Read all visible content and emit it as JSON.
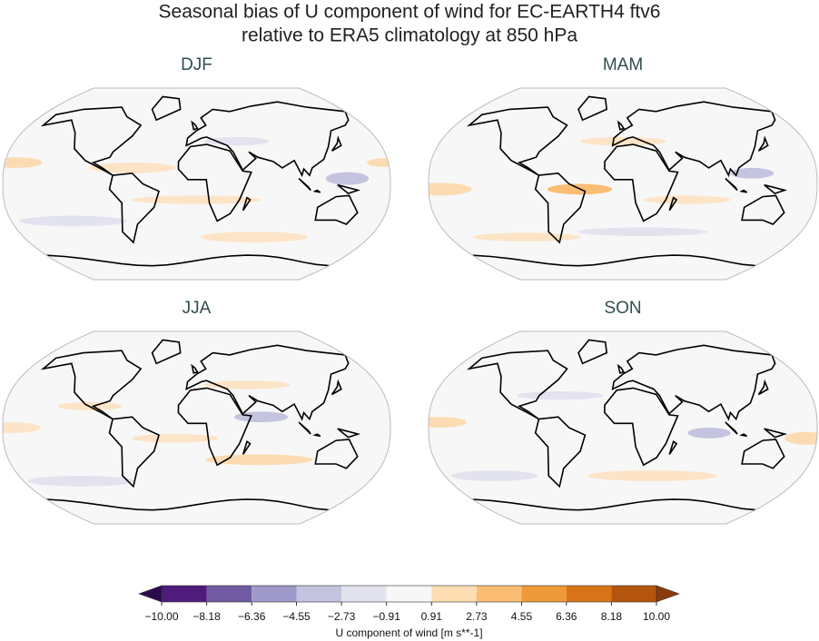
{
  "title_lines": [
    "Seasonal bias of U component of wind for EC-EARTH4 ftv6",
    "relative to ERA5 climatology at 850 hPa"
  ],
  "panels": [
    {
      "label": "DJF"
    },
    {
      "label": "MAM"
    },
    {
      "label": "JJA"
    },
    {
      "label": "SON"
    }
  ],
  "colorbar": {
    "ticks": [
      {
        "value": -10,
        "label": "−10.00"
      },
      {
        "value": -8.18,
        "label": "−8.18"
      },
      {
        "value": -6.36,
        "label": "−6.36"
      },
      {
        "value": -4.55,
        "label": "−4.55"
      },
      {
        "value": -2.73,
        "label": "−2.73"
      },
      {
        "value": -0.91,
        "label": "−0.91"
      },
      {
        "value": 0.91,
        "label": "0.91"
      },
      {
        "value": 2.73,
        "label": "2.73"
      },
      {
        "value": 4.55,
        "label": "4.55"
      },
      {
        "value": 6.36,
        "label": "6.36"
      },
      {
        "value": 8.18,
        "label": "8.18"
      },
      {
        "value": 10,
        "label": "10.00"
      }
    ],
    "colors": [
      "#2d0a4e",
      "#4f1c7c",
      "#705ba2",
      "#9e99c8",
      "#c5c4e0",
      "#e3e3ef",
      "#f7f7f7",
      "#fdddb2",
      "#fbbd73",
      "#ee9a3a",
      "#d9731a",
      "#b4550d",
      "#8b3a0a"
    ],
    "label": "U component of wind [m s**-1]"
  }
}
